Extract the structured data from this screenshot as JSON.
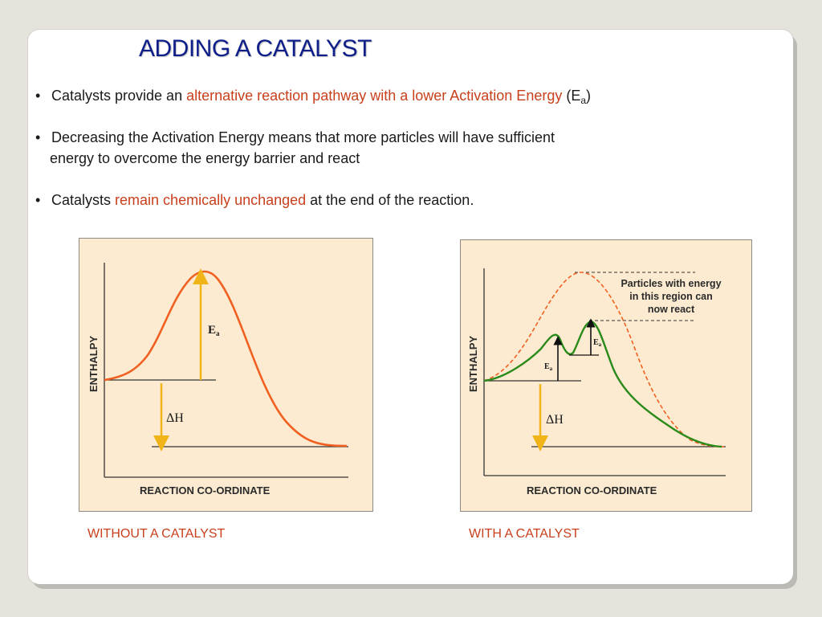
{
  "slide": {
    "title": "ADDING A CATALYST",
    "bullets": [
      {
        "marker": "•",
        "text_before": "Catalysts provide an ",
        "highlight": "alternative reaction pathway with a lower Activation Energy",
        "text_after": " (E",
        "subscript": "a",
        "text_end": ")"
      },
      {
        "marker": "•",
        "line1": "Decreasing the Activation Energy means that more particles will have sufficient",
        "line2": "energy to overcome the energy barrier and react"
      },
      {
        "marker": "•",
        "text_before": "Catalysts ",
        "highlight": "remain chemically unchanged",
        "text_after": " at the end of the reaction."
      }
    ]
  },
  "diagram_left": {
    "y_axis_label": "ENTHALPY",
    "x_axis_label": "REACTION CO-ORDINATE",
    "ea_label": "E",
    "ea_sub": "a",
    "dh_label": "ΔH",
    "caption": "WITHOUT A CATALYST"
  },
  "diagram_right": {
    "y_axis_label": "ENTHALPY",
    "x_axis_label": "REACTION CO-ORDINATE",
    "ea_label": "E",
    "ea_sub": "a",
    "dh_label": "ΔH",
    "note_lines": [
      "Particles with energy",
      "in this region can",
      "now react"
    ],
    "caption": "WITH A CATALYST"
  },
  "colors": {
    "title": "#0e1f8a",
    "highlight": "#c8401c",
    "panel_bg": "#fcebd1",
    "uncatalysed_curve": "#f06020",
    "catalysed_curve": "#2a8a1a",
    "arrow": "#f0b418"
  }
}
